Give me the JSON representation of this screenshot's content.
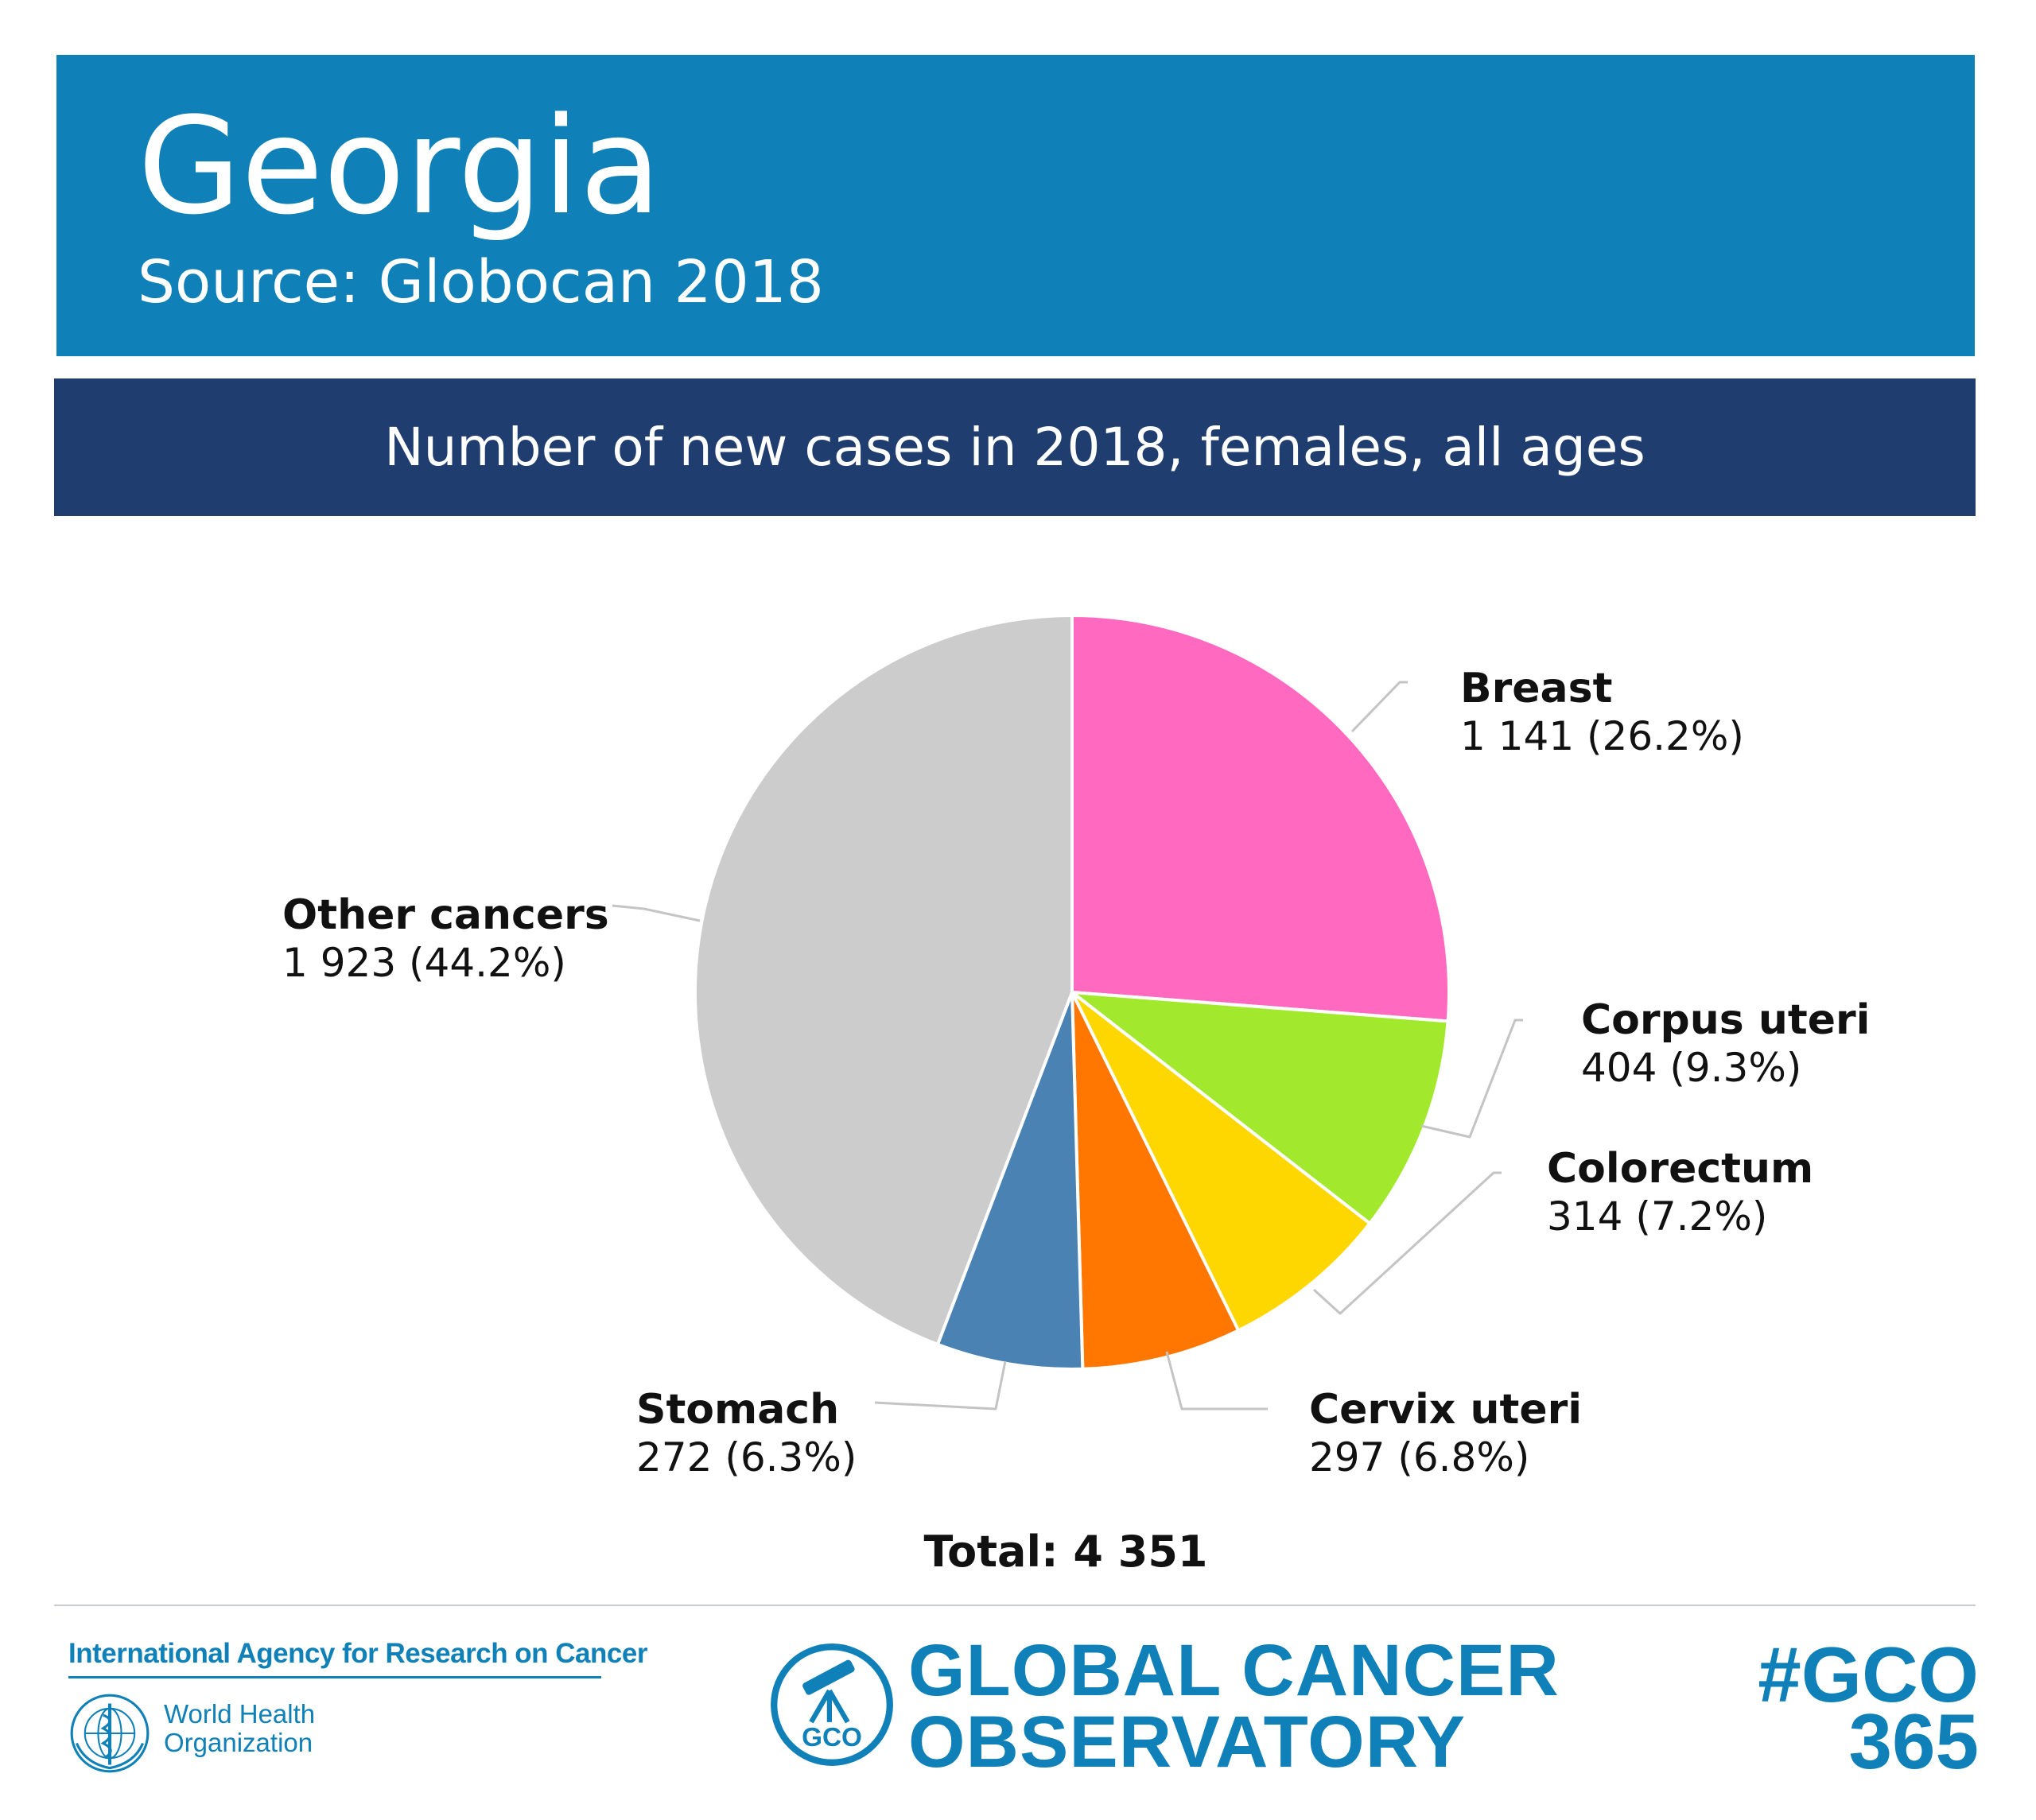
{
  "header": {
    "title": "Georgia",
    "source": "Source: Globocan 2018",
    "band_color": "#0f81b8"
  },
  "subtitle": {
    "text": "Number of new cases in 2018, females, all ages",
    "band_color": "#1f3e6f"
  },
  "chart_data": {
    "type": "pie",
    "title": "Number of new cases in 2018, females, all ages",
    "slices": [
      {
        "label": "Breast",
        "value": 1141,
        "value_text": "1 141 (26.2%)",
        "percent": 26.2,
        "color": "#ff69bf"
      },
      {
        "label": "Corpus uteri",
        "value": 404,
        "value_text": "404 (9.3%)",
        "percent": 9.3,
        "color": "#a2e82c"
      },
      {
        "label": "Colorectum",
        "value": 314,
        "value_text": "314 (7.2%)",
        "percent": 7.2,
        "color": "#ffd700"
      },
      {
        "label": "Cervix uteri",
        "value": 297,
        "value_text": "297 (6.8%)",
        "percent": 6.8,
        "color": "#ff7700"
      },
      {
        "label": "Stomach",
        "value": 272,
        "value_text": "272 (6.3%)",
        "percent": 6.3,
        "color": "#4a82b4"
      },
      {
        "label": "Other cancers",
        "value": 1923,
        "value_text": "1 923 (44.2%)",
        "percent": 44.2,
        "color": "#cccccc"
      }
    ],
    "total": 4351,
    "total_text": "Total: 4 351",
    "legend": "none",
    "data_labels": "outside with leader lines"
  },
  "footer": {
    "iarc": "International Agency for Research on Cancer",
    "who_line1": "World Health",
    "who_line2": "Organization",
    "gco_logo_text": "GCO",
    "gco_line1": "GLOBAL CANCER",
    "gco_line2": "OBSERVATORY",
    "hashtag_line1": "#GCO",
    "hashtag_line2": "365",
    "brand_color": "#0f81b8",
    "icons": [
      "who-emblem-icon",
      "telescope-icon"
    ]
  }
}
